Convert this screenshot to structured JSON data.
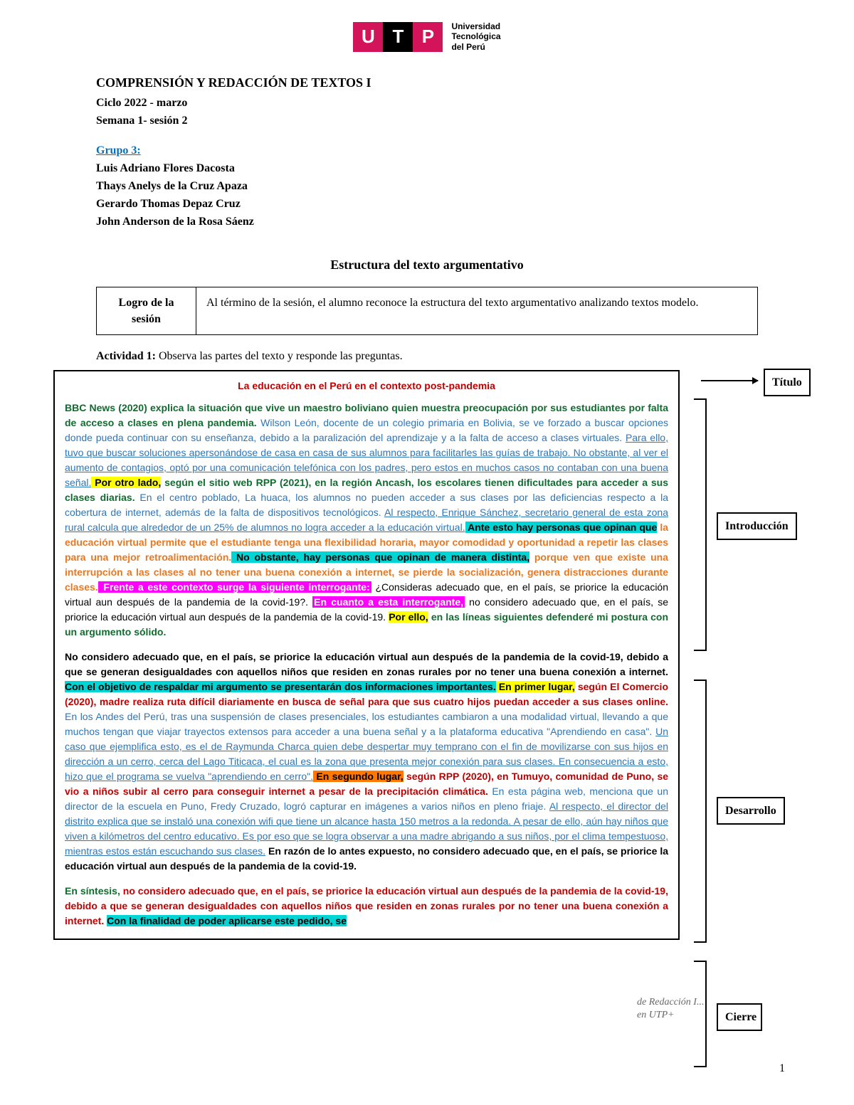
{
  "logo": {
    "u": "U",
    "t": "T",
    "p": "P",
    "subtitle_l1": "Universidad",
    "subtitle_l2": "Tecnológica",
    "subtitle_l3": "del Perú"
  },
  "header": {
    "course": "COMPRENSIÓN Y REDACCIÓN DE TEXTOS I",
    "cycle": "Ciclo 2022 - marzo",
    "week": "Semana 1- sesión 2",
    "group_label": "Grupo 3:",
    "members": [
      "Luis Adriano Flores Dacosta",
      "Thays Anelys de la Cruz Apaza",
      "Gerardo Thomas Depaz Cruz",
      "John Anderson de la Rosa Sáenz"
    ]
  },
  "section_title": "Estructura del texto argumentativo",
  "logro": {
    "label_l1": "Logro de la",
    "label_l2": "sesión",
    "text": "Al término de la sesión, el alumno reconoce la estructura del texto argumentativo analizando textos modelo."
  },
  "actividad": {
    "label": "Actividad 1:",
    "text": " Observa las partes del texto y responde las preguntas."
  },
  "article": {
    "title": "La educación en el Perú en el contexto post-pandemia",
    "p1": {
      "s1": "BBC News (2020) explica la situación que vive un maestro boliviano quien muestra preocupación por sus estudiantes por falta de acceso a clases en plena pandemia.",
      "s2": " Wilson León, docente de un colegio primaria en Bolivia, se ve forzado a buscar opciones donde pueda continuar con su enseñanza, debido a la paralización del aprendizaje y a la falta de acceso a clases virtuales. ",
      "s3": "Para ello, tuvo que buscar soluciones apersonándose de casa en casa de sus alumnos para facilitarles las guías de trabajo. No obstante, al ver el aumento de contagios, optó por una comunicación telefónica con los padres, pero estos en muchos casos no contaban con una buena señal.",
      "s4": " Por otro lado,",
      "s5": " según el sitio web RPP (2021), en la región Ancash, los escolares tienen dificultades para acceder a sus clases diarias.",
      "s6": " En el centro poblado, La huaca, los alumnos no pueden acceder a sus clases por las deficiencias respecto a la cobertura de internet, además de la falta de dispositivos tecnológicos. ",
      "s7": "Al respecto, Enrique Sánchez, secretario general de esta zona rural calcula que alrededor de un 25% de alumnos no logra acceder a la educación virtual.",
      "s8": " Ante esto hay personas que opinan que",
      "s9": " la educación virtual permite que el estudiante tenga una flexibilidad horaria, mayor comodidad y oportunidad a repetir las clases para una mejor retroalimentación.",
      "s10": " No obstante, hay personas que opinan de manera distinta,",
      "s11": " porque ven que existe una interrupción a las clases al no tener una buena conexión a internet, se pierde la socialización, genera distracciones durante clases.",
      "s12": " Frente a este contexto surge la siguiente interrogante:",
      "s13": " ¿Consideras adecuado que, en el país, se priorice la educación virtual aun después de la pandemia de la covid-19?. ",
      "s14": "En cuanto a esta interrogante,",
      "s15": " no considero adecuado que, en el país, se priorice la educación virtual aun después de la pandemia de la covid-19. ",
      "s16": "Por ello,",
      "s17": " en las líneas siguientes defenderé mi postura con un argumento sólido."
    },
    "p2": {
      "s1": "No considero adecuado que, en el país, se priorice la educación virtual aun después de la pandemia de la covid-19, debido a que se generan desigualdades con aquellos niños que residen en zonas rurales por no tener una buena conexión a internet.",
      "s2": " Con el objetivo de respaldar mi argumento se presentarán dos informaciones importantes.",
      "s3": " En primer lugar,",
      "s4": " según El Comercio (2020), madre realiza ruta difícil diariamente en busca de señal para que sus cuatro hijos puedan acceder a sus clases online.",
      "s5": " En los Andes del Perú, tras una suspensión de clases presenciales, los estudiantes cambiaron a una modalidad virtual, llevando a que muchos tengan que viajar trayectos extensos para acceder a una buena señal y a la plataforma educativa \"Aprendiendo en casa\". ",
      "s6": "Un caso que ejemplifica esto, es el de Raymunda Charca quien debe despertar muy temprano con el fin de movilizarse con sus hijos en dirección a un cerro, cerca del Lago Titicaca, el cual es la zona que presenta mejor conexión para sus clases. En consecuencia a esto, hizo que el programa se vuelva \"aprendiendo en cerro\".",
      "s7": " En segundo lugar,",
      "s8": " según RPP (2020), en Tumuyo, comunidad de Puno, se vio a niños subir al cerro para conseguir internet a pesar de la precipitación climática.",
      "s9": " En esta página web, menciona que un director de la escuela en Puno, Fredy Cruzado, logró capturar en imágenes a varios niños en pleno friaje. ",
      "s10": "Al respecto, el director del distrito explica que se instaló una conexión wifi que tiene un alcance hasta 150 metros a la redonda. A pesar de ello, aún hay niños que viven a kilómetros del centro educativo. Es por eso que se logra observar a una madre abrigando a sus niños, por el clima tempestuoso, mientras estos están escuchando sus clases.",
      "s11": " En razón de lo antes expuesto, no considero adecuado que, en el país, se priorice la educación virtual aun después de la pandemia de la covid-19."
    },
    "p3": {
      "s1": "En síntesis,",
      "s2": " no considero adecuado que, en el país, se priorice la educación virtual aun después de la pandemia de la covid-19, debido a que se generan desigualdades con aquellos niños que residen en zonas rurales por no tener una buena conexión a internet. ",
      "s3": "Con la finalidad de poder aplicarse este pedido, se"
    }
  },
  "labels": {
    "titulo": "Título",
    "introduccion": "Introducción",
    "desarrollo": "Desarrollo",
    "cierre": "Cierre"
  },
  "ghost": {
    "line1": "de Redacción I...",
    "line2": "en UTP+"
  },
  "page_number": "1",
  "colors": {
    "logo_pink": "#d4145a",
    "title_red": "#c00000",
    "green": "#116b2f",
    "blue": "#2e75b6",
    "orange": "#e87722",
    "hl_yellow": "#ffff00",
    "hl_cyan": "#00d5d5",
    "hl_magenta": "#ff00ff",
    "hl_orange": "#ff7800",
    "link_blue": "#0070c0"
  }
}
